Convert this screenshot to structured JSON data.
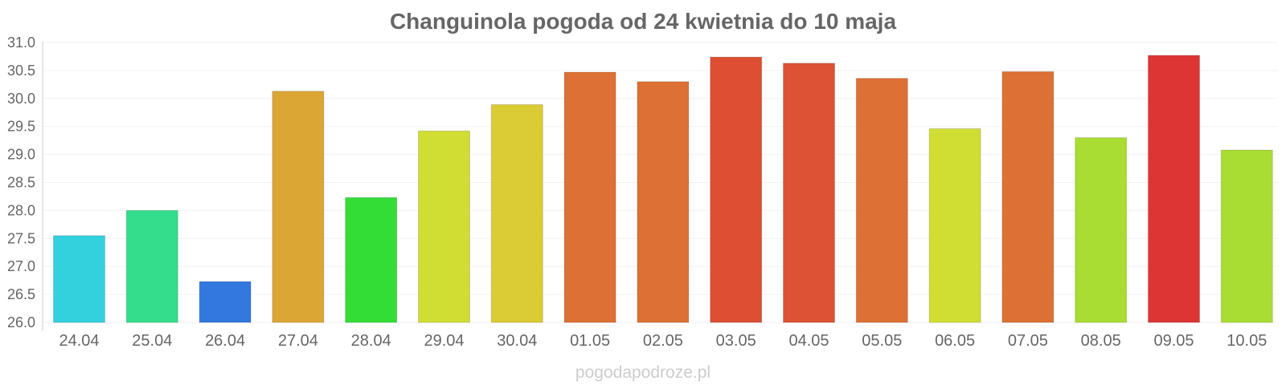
{
  "chart_data": {
    "type": "bar",
    "title": "Changuinola pogoda od 24 kwietnia do 10 maja",
    "categories": [
      "24.04",
      "25.04",
      "26.04",
      "27.04",
      "28.04",
      "29.04",
      "30.04",
      "01.05",
      "02.05",
      "03.05",
      "04.05",
      "05.05",
      "06.05",
      "07.05",
      "08.05",
      "09.05",
      "10.05"
    ],
    "values": [
      27.55,
      28.0,
      26.73,
      30.13,
      28.23,
      29.42,
      29.89,
      30.47,
      30.3,
      30.74,
      30.63,
      30.36,
      29.46,
      30.48,
      29.3,
      30.77,
      29.08
    ],
    "colors": [
      "#33d0de",
      "#33dd8c",
      "#3378de",
      "#dca634",
      "#33dd36",
      "#d0dd33",
      "#dbcb34",
      "#dd7034",
      "#dd7034",
      "#dd4e33",
      "#dd5234",
      "#dd7034",
      "#d0dd33",
      "#dd7034",
      "#aadd33",
      "#dd3434",
      "#a9dd33"
    ],
    "ylim": [
      26.0,
      31.0
    ],
    "yticks": [
      "26.0",
      "26.5",
      "27.0",
      "27.5",
      "28.0",
      "28.5",
      "29.0",
      "29.5",
      "30.0",
      "30.5",
      "31.0"
    ],
    "grid": true,
    "legend": "none",
    "xlabel": "",
    "ylabel": ""
  },
  "watermark": "pogodapodroze.pl"
}
